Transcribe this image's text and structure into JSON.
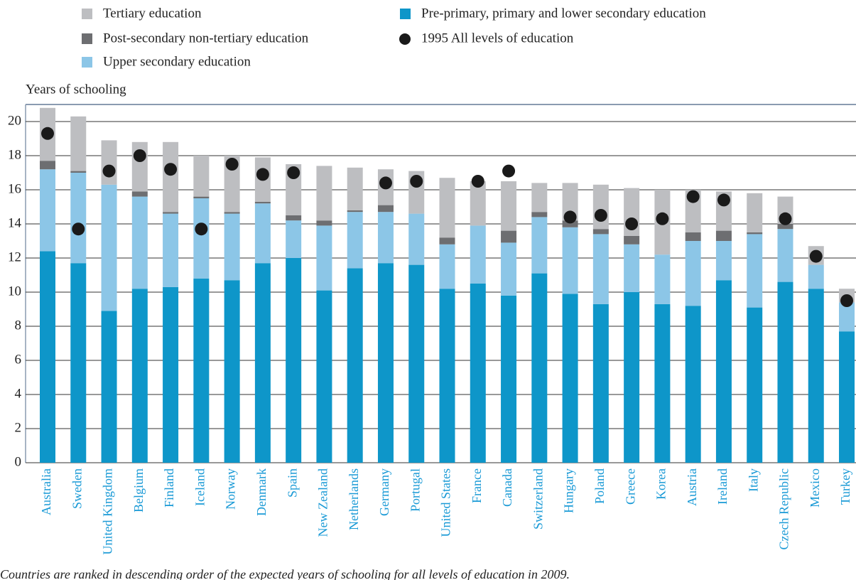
{
  "chart_data": {
    "type": "stacked_bar",
    "y_axis_label": "Years of schooling",
    "footnote": "Countries are ranked in descending order of the expected years of schooling for all levels of education in 2009.",
    "categories": [
      "Australia",
      "Sweden",
      "United Kingdom",
      "Belgium",
      "Finland",
      "Iceland",
      "Norway",
      "Denmark",
      "Spain",
      "New Zealand",
      "Netherlands",
      "Germany",
      "Portugal",
      "United States",
      "France",
      "Canada",
      "Switzerland",
      "Hungary",
      "Poland",
      "Greece",
      "Korea",
      "Austria",
      "Ireland",
      "Italy",
      "Czech Republic",
      "Mexico",
      "Turkey"
    ],
    "series": [
      {
        "name": "Pre-primary, primary and lower secondary education",
        "color": "#0e96c9",
        "values": [
          12.4,
          11.7,
          8.9,
          10.2,
          10.3,
          10.8,
          10.7,
          11.7,
          12.0,
          10.1,
          11.4,
          11.7,
          11.6,
          10.2,
          10.5,
          9.8,
          11.1,
          9.9,
          9.3,
          10.0,
          9.3,
          9.2,
          10.7,
          9.1,
          10.6,
          10.2,
          7.7
        ]
      },
      {
        "name": "Upper secondary education",
        "color": "#8cc6e7",
        "values": [
          4.8,
          5.3,
          7.4,
          5.4,
          4.3,
          4.7,
          3.9,
          3.5,
          2.2,
          3.8,
          3.3,
          3.0,
          3.0,
          2.6,
          3.4,
          3.1,
          3.3,
          3.9,
          4.1,
          2.8,
          2.9,
          3.8,
          2.3,
          4.3,
          3.1,
          1.4,
          1.7
        ]
      },
      {
        "name": "Post-secondary non-tertiary education",
        "color": "#6d6e71",
        "values": [
          0.5,
          0.1,
          0,
          0.3,
          0.1,
          0.1,
          0.1,
          0.1,
          0.3,
          0.3,
          0.1,
          0.4,
          0,
          0.4,
          0,
          0.7,
          0.3,
          0.4,
          0.3,
          0.5,
          0,
          0.5,
          0.6,
          0.1,
          0.3,
          0,
          0
        ]
      },
      {
        "name": "Tertiary education",
        "color": "#bdbec1",
        "values": [
          3.1,
          3.2,
          2.6,
          2.9,
          4.1,
          2.4,
          3.3,
          2.6,
          3.0,
          3.2,
          2.5,
          2.1,
          2.5,
          3.5,
          2.6,
          2.9,
          1.7,
          2.2,
          2.6,
          2.8,
          3.8,
          2.5,
          2.3,
          2.3,
          1.6,
          1.1,
          0.8
        ]
      },
      {
        "name": "1995 All levels of education",
        "type": "dot",
        "color": "#1a1a1a",
        "values": [
          19.3,
          13.7,
          17.1,
          18.0,
          17.2,
          13.7,
          17.5,
          16.9,
          17.0,
          null,
          null,
          16.4,
          16.5,
          null,
          16.5,
          17.1,
          null,
          14.4,
          14.5,
          14.0,
          14.3,
          15.6,
          15.4,
          null,
          14.3,
          12.1,
          9.5
        ]
      }
    ],
    "ylim": [
      0,
      21
    ],
    "yticks": [
      0,
      2,
      4,
      6,
      8,
      10,
      12,
      14,
      16,
      18,
      20
    ],
    "grid": true
  }
}
